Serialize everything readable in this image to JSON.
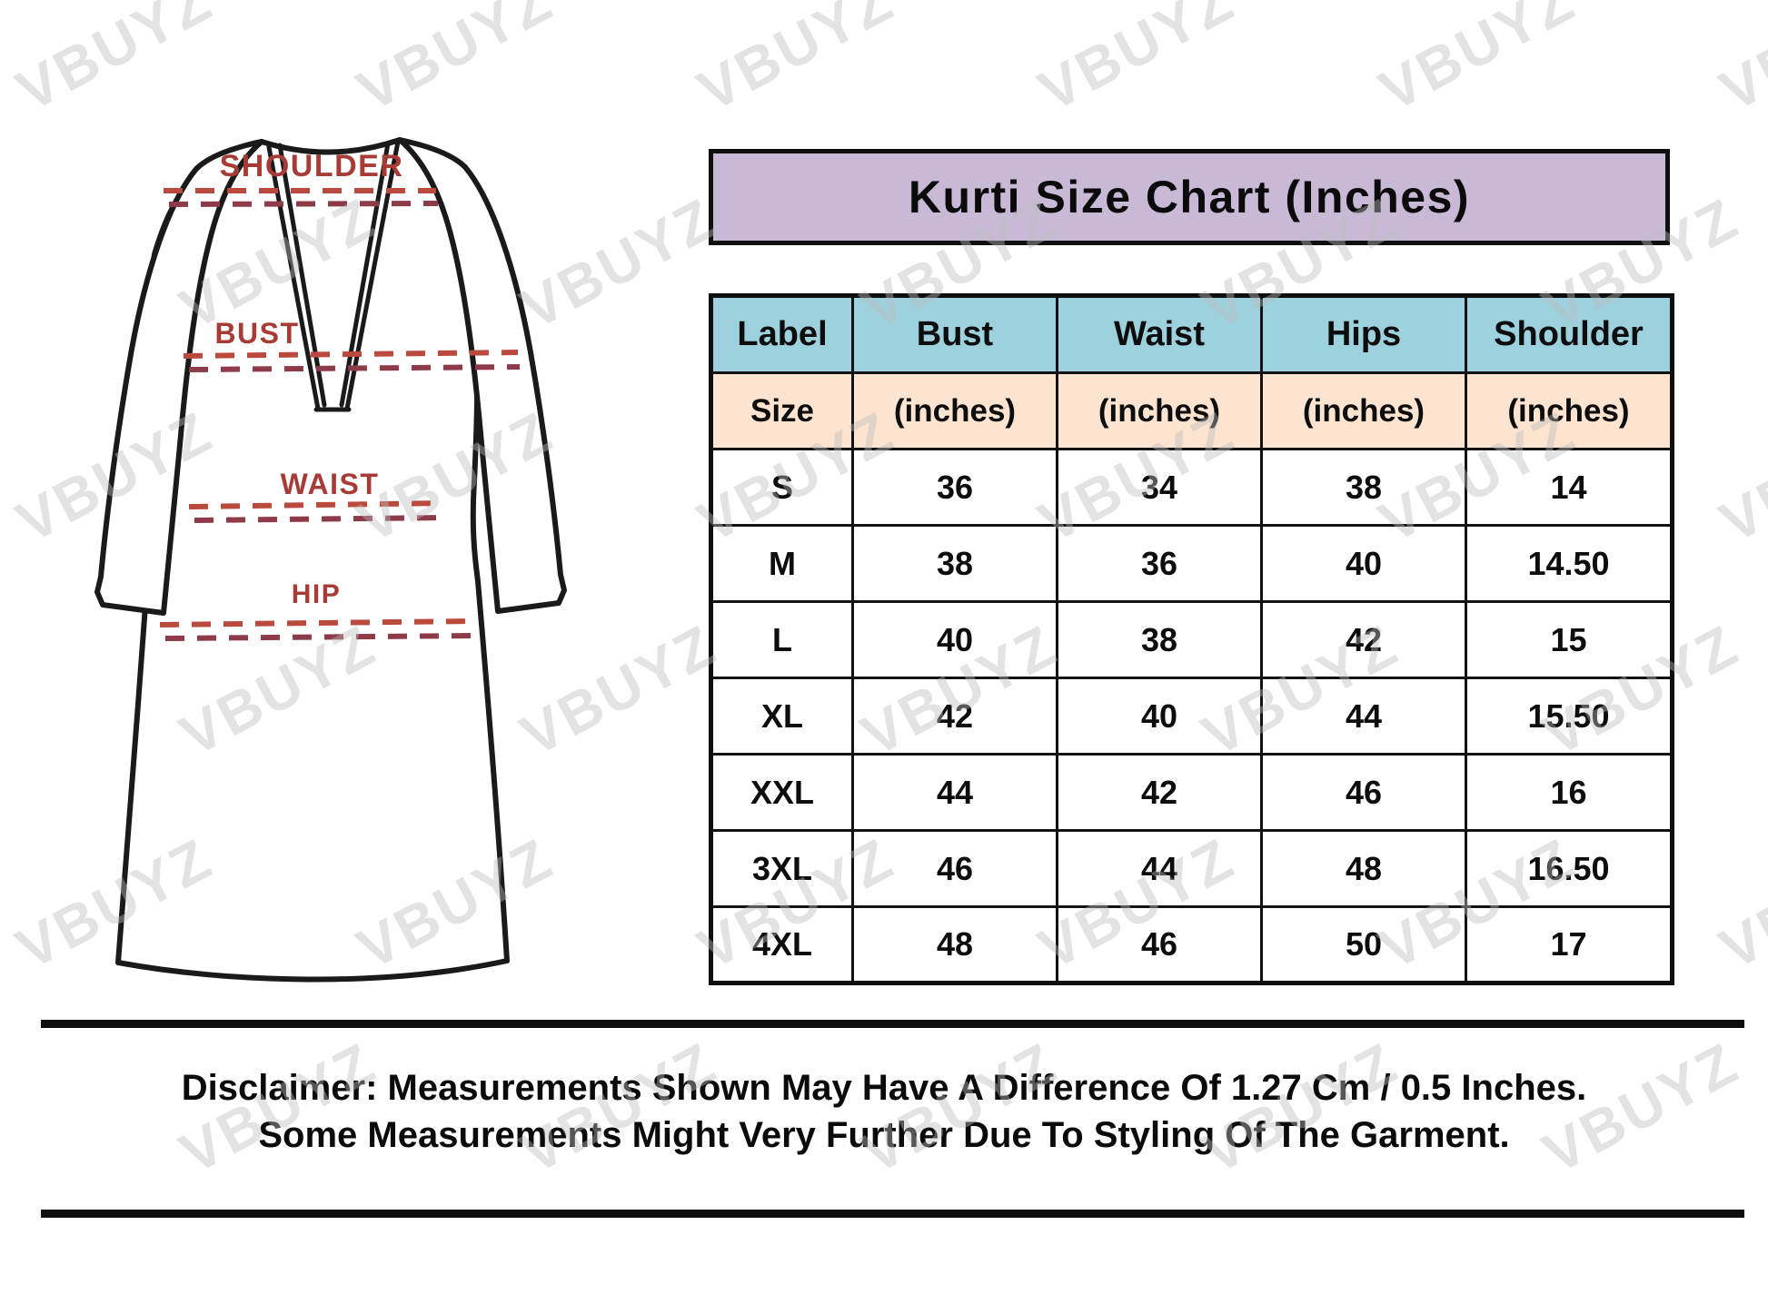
{
  "watermark": {
    "text": "VBUYZ"
  },
  "diagram": {
    "labels": {
      "shoulder": "SHOULDER",
      "bust": "BUST",
      "waist": "WAIST",
      "hip": "HIP"
    },
    "accent_color": "#a63c35",
    "dash_color_1": "#bb4a3e",
    "dash_color_2": "#8d3b49"
  },
  "title": {
    "bg": "#c8bad7"
  },
  "table_style": {
    "header_bg": "#9dd1de",
    "subheader_bg": "#fce4d0"
  },
  "chart_data": {
    "type": "table",
    "title": "Kurti Size Chart (Inches)",
    "columns": [
      "Label",
      "Bust",
      "Waist",
      "Hips",
      "Shoulder"
    ],
    "subheader": [
      "Size",
      "(inches)",
      "(inches)",
      "(inches)",
      "(inches)"
    ],
    "rows": [
      [
        "S",
        "36",
        "34",
        "38",
        "14"
      ],
      [
        "M",
        "38",
        "36",
        "40",
        "14.50"
      ],
      [
        "L",
        "40",
        "38",
        "42",
        "15"
      ],
      [
        "XL",
        "42",
        "40",
        "44",
        "15.50"
      ],
      [
        "XXL",
        "44",
        "42",
        "46",
        "16"
      ],
      [
        "3XL",
        "46",
        "44",
        "48",
        "16.50"
      ],
      [
        "4XL",
        "48",
        "46",
        "50",
        "17"
      ]
    ]
  },
  "disclaimer": {
    "line1": "Disclaimer: Measurements Shown May Have A Difference Of 1.27 Cm / 0.5 Inches.",
    "line2": "Some Measurements Might Very Further Due To Styling Of The Garment."
  }
}
